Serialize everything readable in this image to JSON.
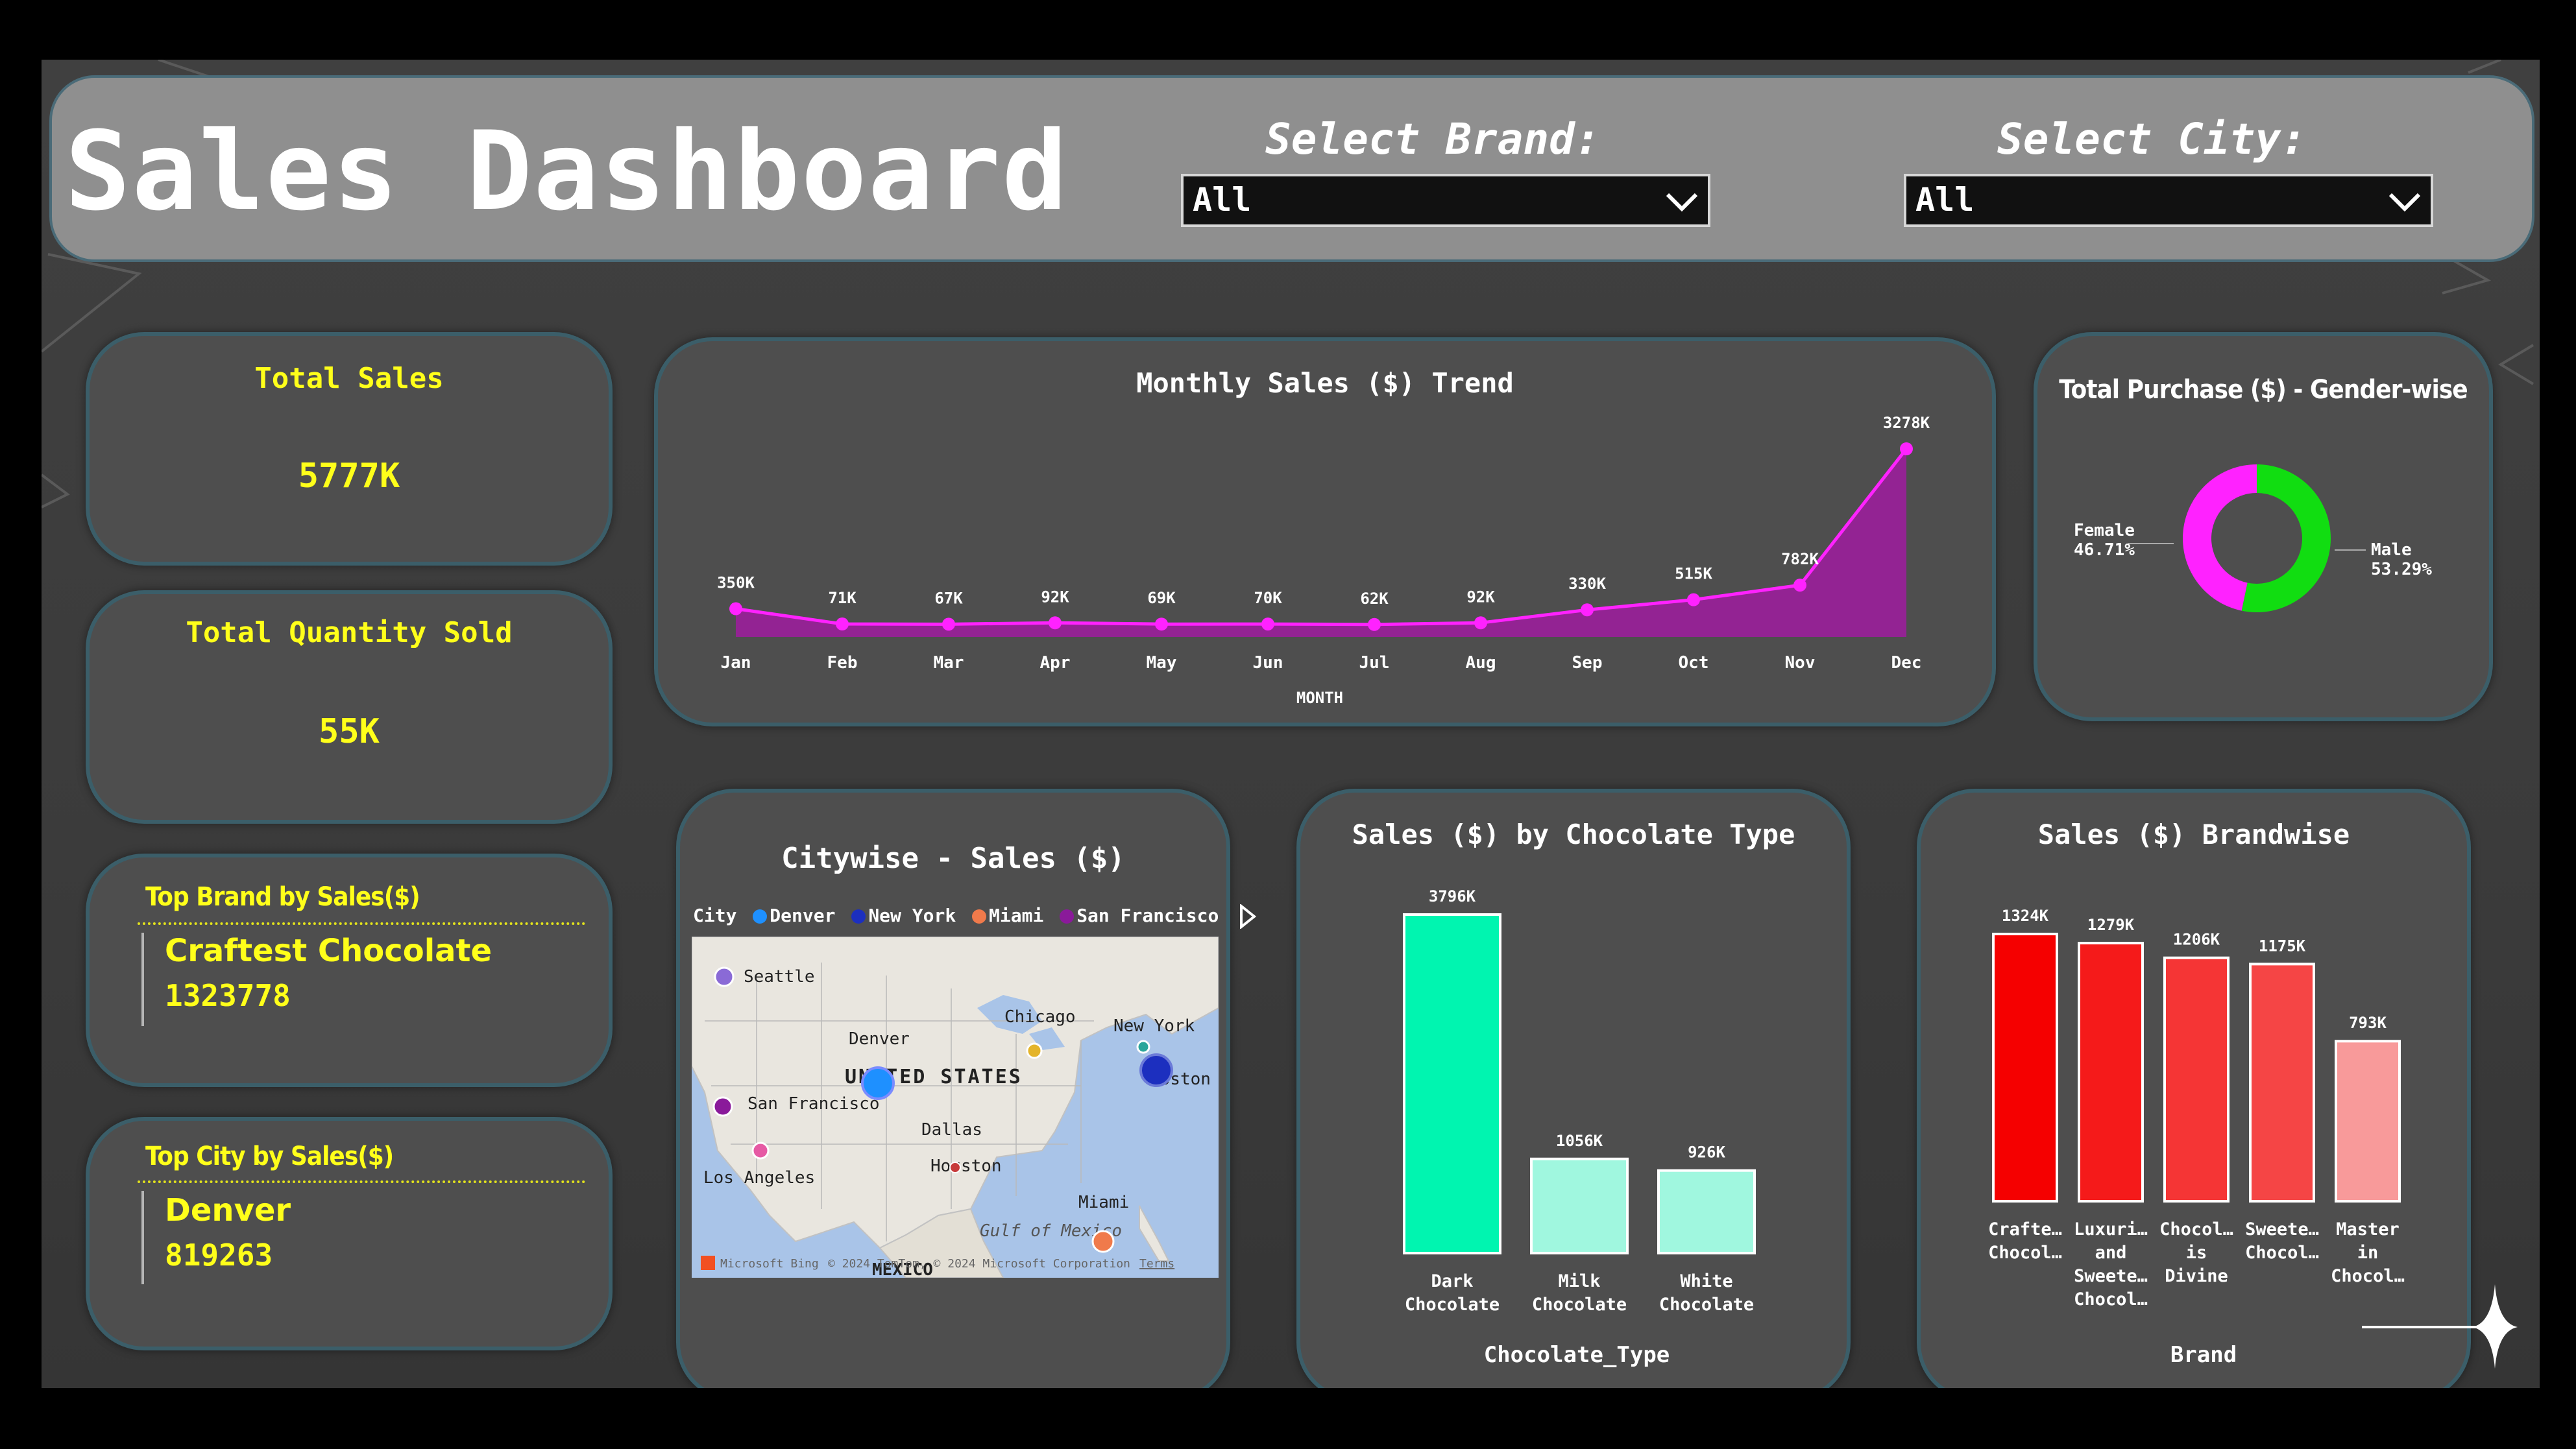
{
  "dashboard": {
    "title": "Sales Dashboard"
  },
  "slicers": {
    "brand": {
      "label": "Select Brand:",
      "value": "All"
    },
    "city": {
      "label": "Select City:",
      "value": "All"
    }
  },
  "kpis": {
    "total_sales": {
      "label": "Total Sales",
      "value": "5777K"
    },
    "total_quantity": {
      "label": "Total Quantity Sold",
      "value": "55K"
    },
    "top_brand": {
      "label": "Top Brand by Sales($)",
      "name": "Craftest Chocolate",
      "value": "1323778"
    },
    "top_city": {
      "label": "Top City by Sales($)",
      "name": "Denver",
      "value": "819263"
    }
  },
  "colors": {
    "kpi_text": "#ffff1a",
    "trend": "#ff22ff",
    "trend_area": "#9b1f9b",
    "female": "#ff22ff",
    "male": "#11dd11",
    "choc_dark": "#00f5b0",
    "choc_light": "#a0f7df",
    "brand_reds": [
      "#f50000",
      "#f51a1a",
      "#f53535",
      "#f54545",
      "#f89a9a"
    ]
  },
  "map": {
    "title": "Citywise - Sales ($)",
    "legend_title": "City",
    "legend": [
      {
        "name": "Denver",
        "color": "#1e90ff"
      },
      {
        "name": "New York",
        "color": "#1c2fbf"
      },
      {
        "name": "Miami",
        "color": "#f07a4b"
      },
      {
        "name": "San Francisco",
        "color": "#8a1a9a"
      }
    ],
    "labels": [
      "Seattle",
      "Chicago",
      "New York",
      "Denver",
      "UNITED STATES",
      "Boston",
      "San Francisco",
      "Dallas",
      "Houston",
      "Los Angeles",
      "Miami",
      "Gulf of Mexico",
      "MEXICO"
    ],
    "attribution": [
      "Microsoft Bing",
      "© 2024 TomTom, © 2024 Microsoft Corporation",
      "Terms"
    ]
  },
  "chart_data": [
    {
      "type": "area",
      "title": "Monthly Sales ($) Trend",
      "xlabel": "MONTH",
      "ylabel": "",
      "categories": [
        "Jan",
        "Feb",
        "Mar",
        "Apr",
        "May",
        "Jun",
        "Jul",
        "Aug",
        "Sep",
        "Oct",
        "Nov",
        "Dec"
      ],
      "values": [
        350,
        71,
        67,
        92,
        69,
        70,
        62,
        92,
        330,
        515,
        782,
        3278
      ],
      "data_labels": [
        "350K",
        "71K",
        "67K",
        "92K",
        "69K",
        "70K",
        "62K",
        "92K",
        "330K",
        "515K",
        "782K",
        "3278K"
      ],
      "ylim": [
        0,
        3278
      ]
    },
    {
      "type": "pie",
      "title": "Total Purchase ($) - Gender-wise",
      "categories": [
        "Female",
        "Male"
      ],
      "values": [
        46.71,
        53.29
      ],
      "data_labels": [
        "46.71%",
        "53.29%"
      ]
    },
    {
      "type": "bar",
      "title": "Sales ($) by Chocolate Type",
      "xlabel": "Chocolate_Type",
      "ylabel": "",
      "categories": [
        [
          "Dark",
          "Chocolate"
        ],
        [
          "Milk",
          "Chocolate"
        ],
        [
          "White",
          "Chocolate"
        ]
      ],
      "values": [
        3796,
        1056,
        926
      ],
      "data_labels": [
        "3796K",
        "1056K",
        "926K"
      ],
      "ylim": [
        0,
        3796
      ]
    },
    {
      "type": "bar",
      "title": "Sales ($) Brandwise",
      "xlabel": "Brand",
      "ylabel": "",
      "categories": [
        [
          "Crafte…",
          "Chocol…"
        ],
        [
          "Luxuri…",
          "and",
          "Sweete…",
          "Chocol…"
        ],
        [
          "Chocol…",
          "is",
          "Divine"
        ],
        [
          "Sweete…",
          "Chocol…"
        ],
        [
          "Master",
          "in",
          "Chocol…"
        ]
      ],
      "values": [
        1324,
        1279,
        1206,
        1175,
        793
      ],
      "data_labels": [
        "1324K",
        "1279K",
        "1206K",
        "1175K",
        "793K"
      ],
      "ylim": [
        0,
        1324
      ]
    }
  ]
}
